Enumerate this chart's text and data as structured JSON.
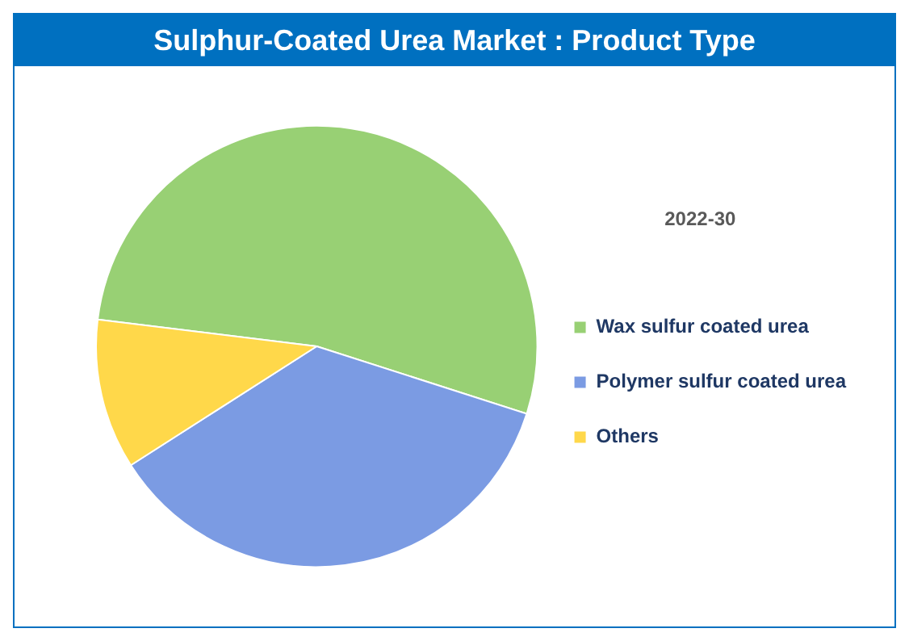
{
  "chart_data": {
    "type": "pie",
    "title": "Sulphur-Coated Urea Market : Product Type",
    "legend_title": "2022-30",
    "legend": "right",
    "categories": [
      "Wax sulfur coated urea",
      "Polymer sulfur coated urea",
      "Others"
    ],
    "values": [
      53,
      36,
      11
    ],
    "colors": [
      "#98d074",
      "#7b9be3",
      "#ffd84a"
    ]
  }
}
